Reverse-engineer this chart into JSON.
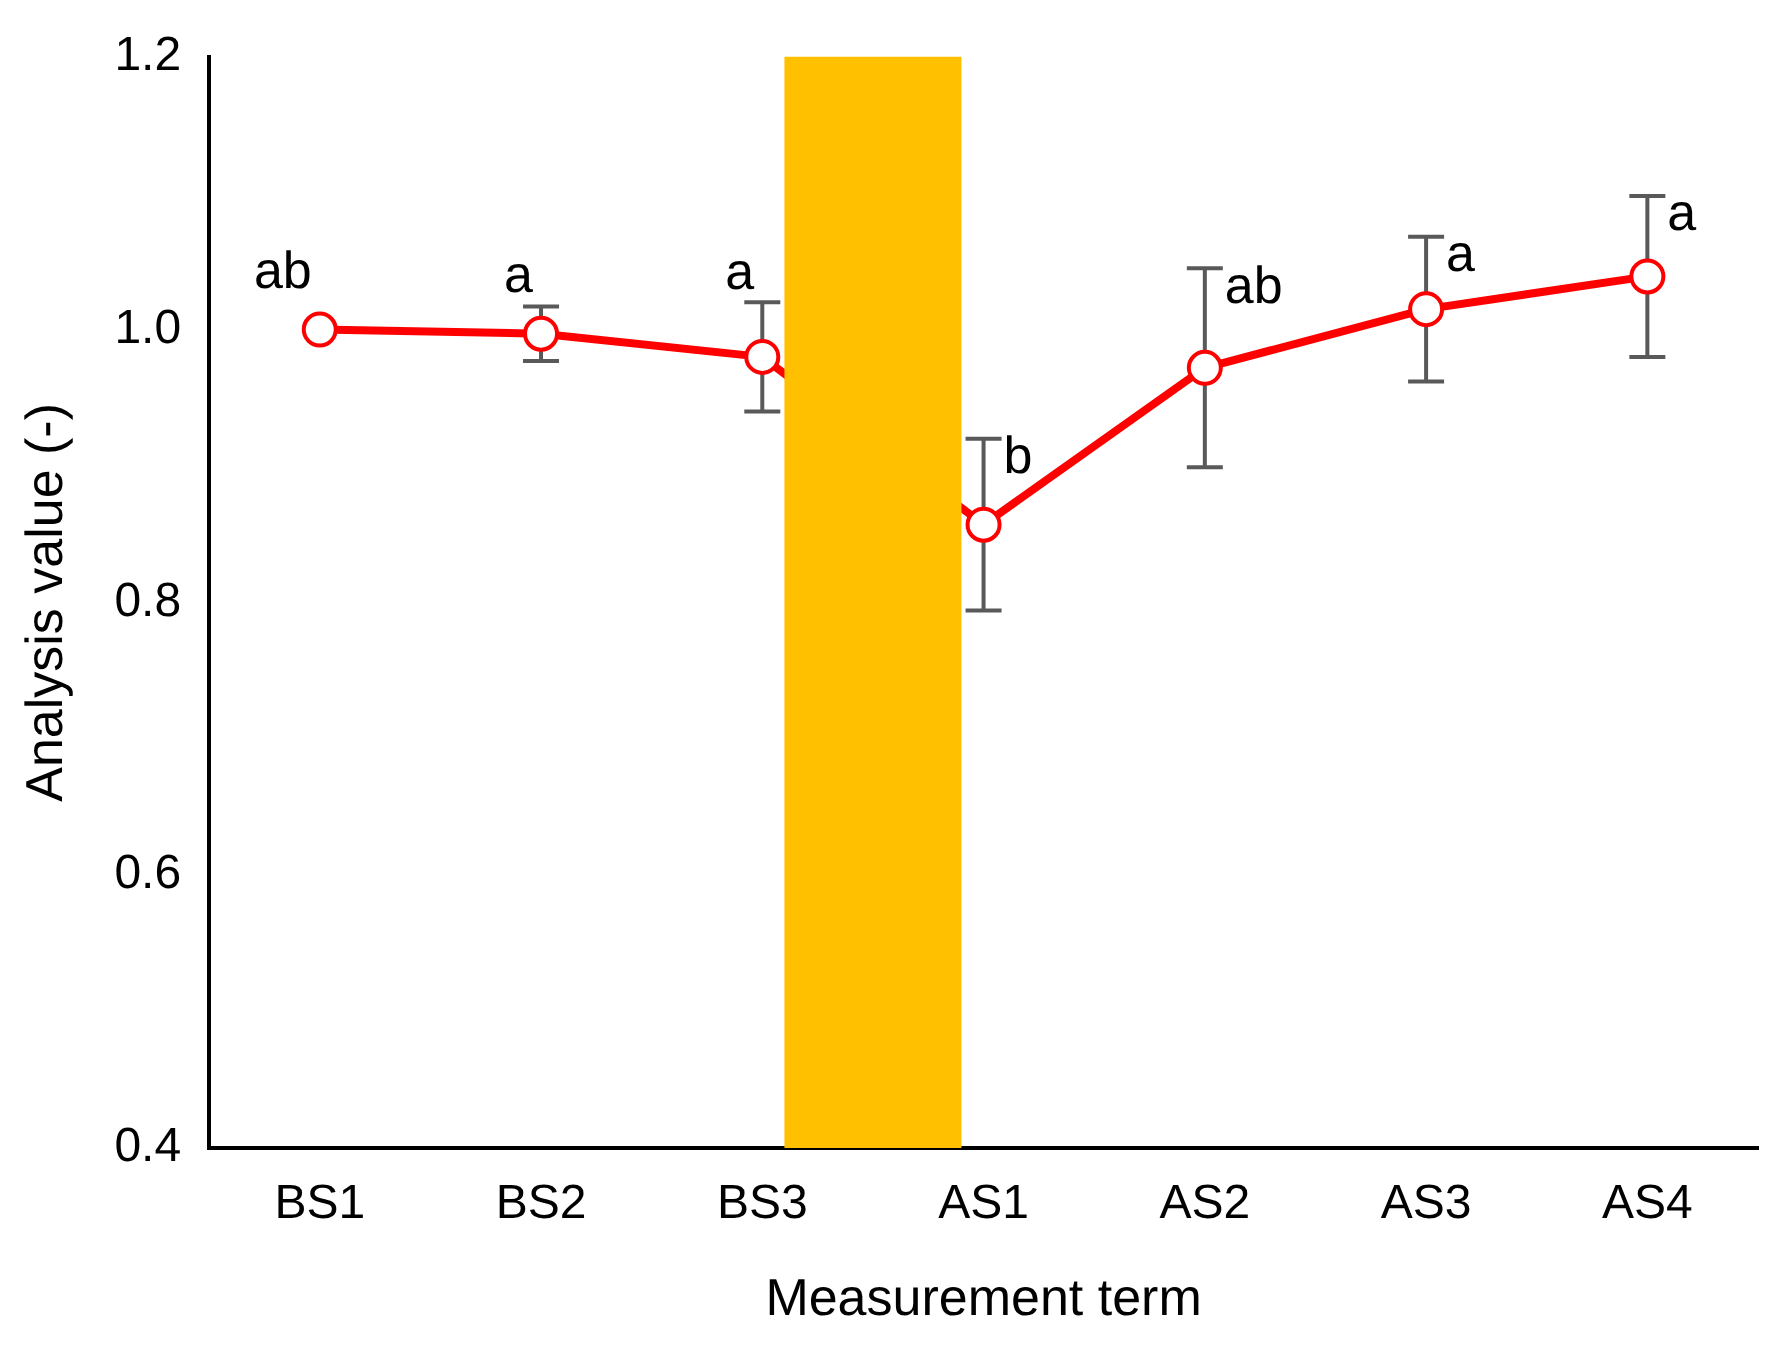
{
  "chart_data": {
    "type": "line",
    "xlabel": "Measurement term",
    "ylabel": "Analysis value (-)",
    "categories": [
      "BS1",
      "BS2",
      "BS3",
      "AS1",
      "AS2",
      "AS3",
      "AS4"
    ],
    "series": [
      {
        "color": "#ff0000",
        "values": [
          1.0,
          0.997,
          0.98,
          0.857,
          0.972,
          1.015,
          1.039
        ],
        "errors": [
          null,
          0.02,
          0.04,
          0.063,
          0.073,
          0.053,
          0.059
        ]
      }
    ],
    "ylim": [
      0.4,
      1.2
    ],
    "yticks": [
      {
        "value": 0.4,
        "label": "0.4"
      },
      {
        "value": 0.6,
        "label": "0.6"
      },
      {
        "value": 0.8,
        "label": "0.8"
      },
      {
        "value": 1.0,
        "label": "1.0"
      },
      {
        "value": 1.2,
        "label": "1.2"
      }
    ],
    "grid": false,
    "legend": false,
    "marker": "circle",
    "line_style": "solid",
    "bands": [
      {
        "axis": "x",
        "from": "BS3",
        "to": "AS1",
        "color": "#ffc000"
      }
    ],
    "annotations": [
      {
        "text": "ab",
        "x": "BS1",
        "y": 1.0
      },
      {
        "text": "a",
        "x": "BS2",
        "y": 0.997
      },
      {
        "text": "a",
        "x": "BS3",
        "y": 0.98
      },
      {
        "text": "b",
        "x": "AS1",
        "y": 0.857
      },
      {
        "text": "ab",
        "x": "AS2",
        "y": 0.972
      },
      {
        "text": "a",
        "x": "AS3",
        "y": 1.015
      },
      {
        "text": "a",
        "x": "AS4",
        "y": 1.039
      }
    ]
  }
}
